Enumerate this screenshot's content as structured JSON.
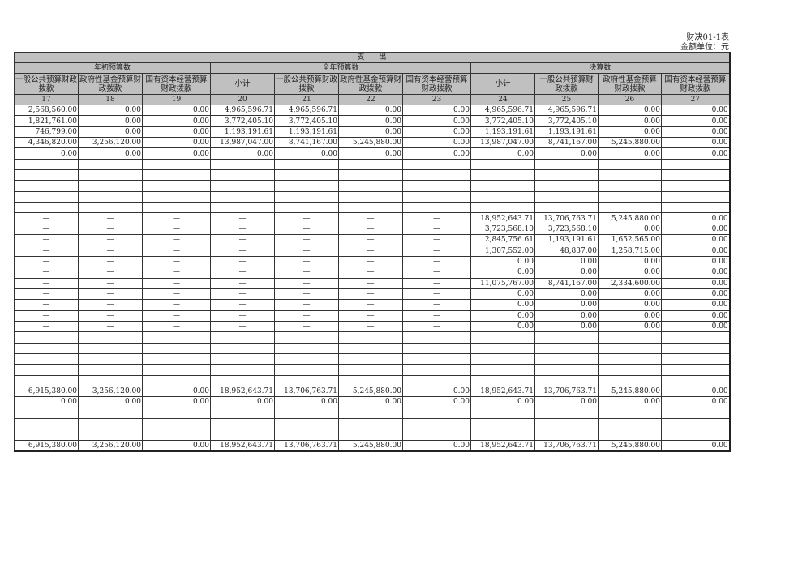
{
  "header": {
    "form_code": "财决01-1表",
    "unit": "金额单位：元"
  },
  "table": {
    "group_title": "支　　出",
    "sections": [
      "年初预算数",
      "全年预算数",
      "决算数"
    ],
    "columns": [
      "一般公共预算财政拨款",
      "政府性基金预算财政拨款",
      "国有资本经营预算财政拨款",
      "小计",
      "一般公共预算财政拨款",
      "政府性基金预算财政拨款",
      "国有资本经营预算财政拨款",
      "小计",
      "一般公共预算财政拨款",
      "政府性基金预算财政拨款",
      "国有资本经营预算财政拨款"
    ],
    "column_numbers": [
      "17",
      "18",
      "19",
      "20",
      "21",
      "22",
      "23",
      "24",
      "25",
      "26",
      "27"
    ],
    "rows": [
      [
        "2,568,560.00",
        "0.00",
        "0.00",
        "4,965,596.71",
        "4,965,596.71",
        "0.00",
        "0.00",
        "4,965,596.71",
        "4,965,596.71",
        "0.00",
        "0.00"
      ],
      [
        "1,821,761.00",
        "0.00",
        "0.00",
        "3,772,405.10",
        "3,772,405.10",
        "0.00",
        "0.00",
        "3,772,405.10",
        "3,772,405.10",
        "0.00",
        "0.00"
      ],
      [
        "746,799.00",
        "0.00",
        "0.00",
        "1,193,191.61",
        "1,193,191.61",
        "0.00",
        "0.00",
        "1,193,191.61",
        "1,193,191.61",
        "0.00",
        "0.00"
      ],
      [
        "4,346,820.00",
        "3,256,120.00",
        "0.00",
        "13,987,047.00",
        "8,741,167.00",
        "5,245,880.00",
        "0.00",
        "13,987,047.00",
        "8,741,167.00",
        "5,245,880.00",
        "0.00"
      ],
      [
        "0.00",
        "0.00",
        "0.00",
        "0.00",
        "0.00",
        "0.00",
        "0.00",
        "0.00",
        "0.00",
        "0.00",
        "0.00"
      ],
      [
        "",
        "",
        "",
        "",
        "",
        "",
        "",
        "",
        "",
        "",
        ""
      ],
      [
        "",
        "",
        "",
        "",
        "",
        "",
        "",
        "",
        "",
        "",
        ""
      ],
      [
        "",
        "",
        "",
        "",
        "",
        "",
        "",
        "",
        "",
        "",
        ""
      ],
      [
        "",
        "",
        "",
        "",
        "",
        "",
        "",
        "",
        "",
        "",
        ""
      ],
      [
        "",
        "",
        "",
        "",
        "",
        "",
        "",
        "",
        "",
        "",
        ""
      ],
      [
        "—",
        "—",
        "—",
        "—",
        "—",
        "—",
        "—",
        "18,952,643.71",
        "13,706,763.71",
        "5,245,880.00",
        "0.00"
      ],
      [
        "—",
        "—",
        "—",
        "—",
        "—",
        "—",
        "—",
        "3,723,568.10",
        "3,723,568.10",
        "0.00",
        "0.00"
      ],
      [
        "—",
        "—",
        "—",
        "—",
        "—",
        "—",
        "—",
        "2,845,756.61",
        "1,193,191.61",
        "1,652,565.00",
        "0.00"
      ],
      [
        "—",
        "—",
        "—",
        "—",
        "—",
        "—",
        "—",
        "1,307,552.00",
        "48,837.00",
        "1,258,715.00",
        "0.00"
      ],
      [
        "—",
        "—",
        "—",
        "—",
        "—",
        "—",
        "—",
        "0.00",
        "0.00",
        "0.00",
        "0.00"
      ],
      [
        "—",
        "—",
        "—",
        "—",
        "—",
        "—",
        "—",
        "0.00",
        "0.00",
        "0.00",
        "0.00"
      ],
      [
        "—",
        "—",
        "—",
        "—",
        "—",
        "—",
        "—",
        "11,075,767.00",
        "8,741,167.00",
        "2,334,600.00",
        "0.00"
      ],
      [
        "—",
        "—",
        "—",
        "—",
        "—",
        "—",
        "—",
        "0.00",
        "0.00",
        "0.00",
        "0.00"
      ],
      [
        "—",
        "—",
        "—",
        "—",
        "—",
        "—",
        "—",
        "0.00",
        "0.00",
        "0.00",
        "0.00"
      ],
      [
        "—",
        "—",
        "—",
        "—",
        "—",
        "—",
        "—",
        "0.00",
        "0.00",
        "0.00",
        "0.00"
      ],
      [
        "—",
        "—",
        "—",
        "—",
        "—",
        "—",
        "—",
        "0.00",
        "0.00",
        "0.00",
        "0.00"
      ],
      [
        "",
        "",
        "",
        "",
        "",
        "",
        "",
        "",
        "",
        "",
        ""
      ],
      [
        "",
        "",
        "",
        "",
        "",
        "",
        "",
        "",
        "",
        "",
        ""
      ],
      [
        "",
        "",
        "",
        "",
        "",
        "",
        "",
        "",
        "",
        "",
        ""
      ],
      [
        "",
        "",
        "",
        "",
        "",
        "",
        "",
        "",
        "",
        "",
        ""
      ],
      [
        "",
        "",
        "",
        "",
        "",
        "",
        "",
        "",
        "",
        "",
        ""
      ],
      [
        "6,915,380.00",
        "3,256,120.00",
        "0.00",
        "18,952,643.71",
        "13,706,763.71",
        "5,245,880.00",
        "0.00",
        "18,952,643.71",
        "13,706,763.71",
        "5,245,880.00",
        "0.00"
      ],
      [
        "0.00",
        "0.00",
        "0.00",
        "0.00",
        "0.00",
        "0.00",
        "0.00",
        "0.00",
        "0.00",
        "0.00",
        "0.00"
      ],
      [
        "",
        "",
        "",
        "",
        "",
        "",
        "",
        "",
        "",
        "",
        ""
      ],
      [
        "",
        "",
        "",
        "",
        "",
        "",
        "",
        "",
        "",
        "",
        ""
      ],
      [
        "",
        "",
        "",
        "",
        "",
        "",
        "",
        "",
        "",
        "",
        ""
      ],
      [
        "6,915,380.00",
        "3,256,120.00",
        "0.00",
        "18,952,643.71",
        "13,706,763.71",
        "5,245,880.00",
        "0.00",
        "18,952,643.71",
        "13,706,763.71",
        "5,245,880.00",
        "0.00"
      ]
    ]
  }
}
